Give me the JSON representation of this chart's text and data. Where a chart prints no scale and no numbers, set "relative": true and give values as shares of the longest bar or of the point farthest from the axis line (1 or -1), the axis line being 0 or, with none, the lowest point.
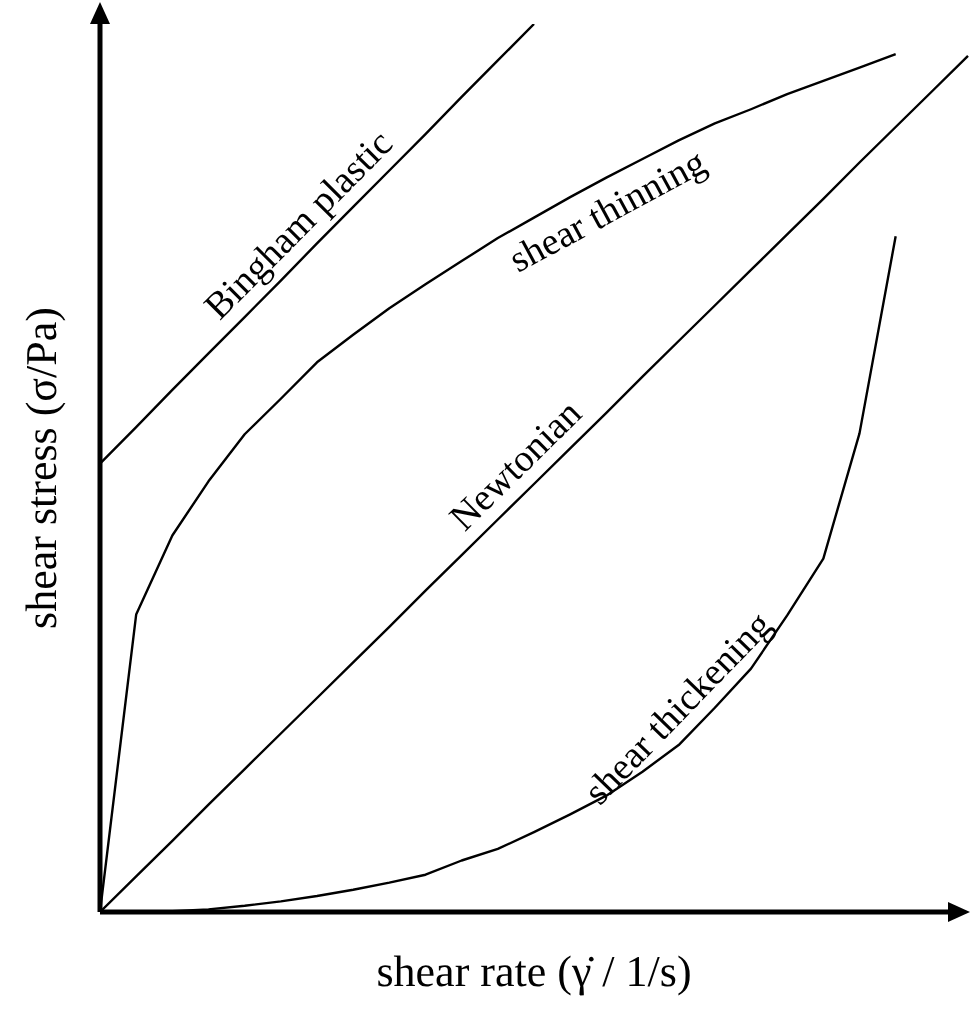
{
  "chart_data": {
    "type": "line",
    "relative": true,
    "xlabel": "shear rate (γ̇ / 1/s)",
    "ylabel": "shear stress (σ/Pa)",
    "legend": false,
    "marker": "none",
    "line_style": "solid",
    "categories": [
      null,
      null,
      null,
      null,
      null,
      null,
      null,
      null,
      null,
      null,
      null,
      null,
      null,
      null,
      null,
      null,
      null,
      null,
      null,
      null,
      null,
      null,
      null,
      null,
      null
    ],
    "series": [
      {
        "name": "Bingham plastic",
        "color": "#000000",
        "values": [
          0.505,
          0.546,
          0.588,
          0.629,
          0.67,
          0.711,
          0.753,
          0.794,
          0.835,
          0.876,
          0.918,
          0.959,
          1,
          null,
          null,
          null,
          null,
          null,
          null,
          null,
          null,
          null,
          null,
          null,
          null
        ]
      },
      {
        "name": "shear thinning",
        "color": "#000000",
        "values": [
          0,
          0.335,
          0.424,
          0.485,
          0.538,
          0.578,
          0.619,
          0.65,
          0.68,
          0.707,
          0.733,
          0.759,
          0.782,
          0.805,
          0.827,
          0.848,
          0.869,
          0.888,
          0.904,
          0.921,
          0.936,
          0.951,
          0.966,
          null,
          null
        ]
      },
      {
        "name": "Newtonian",
        "color": "#000000",
        "values": [
          0,
          0.04,
          0.08,
          0.121,
          0.161,
          0.201,
          0.241,
          0.281,
          0.321,
          0.362,
          0.402,
          0.442,
          0.482,
          0.522,
          0.562,
          0.603,
          0.643,
          0.683,
          0.723,
          0.763,
          0.803,
          0.844,
          0.884,
          0.924,
          0.964
        ]
      },
      {
        "name": "shear thickening",
        "color": "#000000",
        "values": [
          0,
          0.001,
          0.001,
          0.003,
          0.007,
          0.012,
          0.018,
          0.025,
          0.033,
          0.042,
          0.058,
          0.071,
          0.09,
          0.11,
          0.131,
          0.158,
          0.188,
          0.23,
          0.274,
          0.334,
          0.398,
          0.539,
          0.761,
          null,
          null
        ]
      }
    ]
  }
}
